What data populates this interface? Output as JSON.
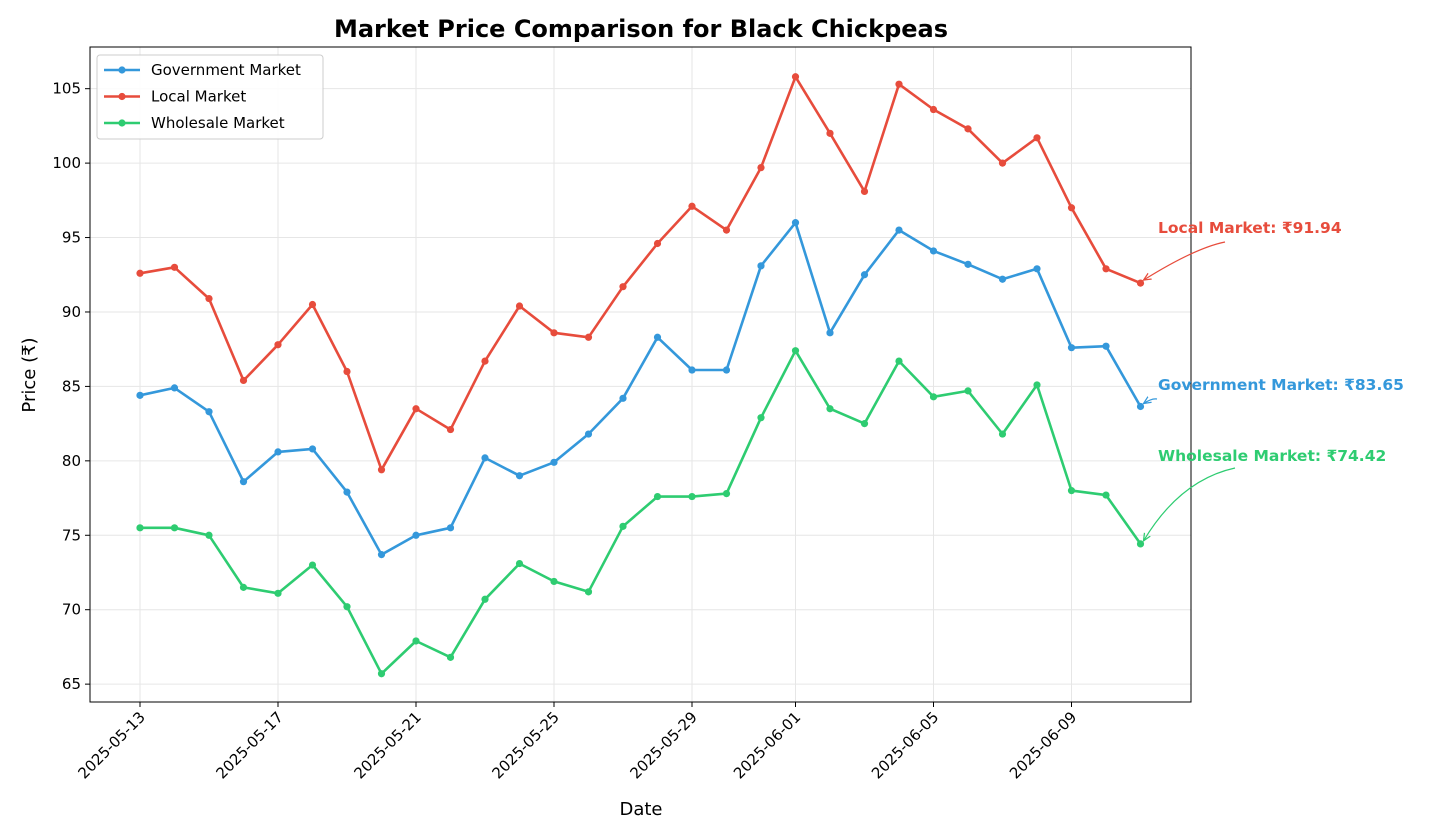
{
  "chart_data": {
    "type": "line",
    "title": "Market Price Comparison for Black Chickpeas",
    "xlabel": "Date",
    "ylabel": "Price (₹)",
    "x": [
      "2025-05-13",
      "2025-05-14",
      "2025-05-15",
      "2025-05-16",
      "2025-05-17",
      "2025-05-18",
      "2025-05-19",
      "2025-05-20",
      "2025-05-21",
      "2025-05-22",
      "2025-05-23",
      "2025-05-24",
      "2025-05-25",
      "2025-05-26",
      "2025-05-27",
      "2025-05-28",
      "2025-05-29",
      "2025-05-30",
      "2025-05-31",
      "2025-06-01",
      "2025-06-02",
      "2025-06-03",
      "2025-06-04",
      "2025-06-05",
      "2025-06-06",
      "2025-06-07",
      "2025-06-08",
      "2025-06-09",
      "2025-06-10",
      "2025-06-11"
    ],
    "xticks": [
      "2025-05-13",
      "2025-05-17",
      "2025-05-21",
      "2025-05-25",
      "2025-05-29",
      "2025-06-01",
      "2025-06-05",
      "2025-06-09"
    ],
    "yticks": [
      65,
      70,
      75,
      80,
      85,
      90,
      95,
      100,
      105
    ],
    "ylim": [
      63.8,
      107.8
    ],
    "grid": true,
    "legend_position": "top-left",
    "series": [
      {
        "name": "Government Market",
        "color": "#3498db",
        "values": [
          84.4,
          84.9,
          83.3,
          78.6,
          80.6,
          80.8,
          77.9,
          73.7,
          75.0,
          75.5,
          80.2,
          79.0,
          79.9,
          81.8,
          84.2,
          88.3,
          86.1,
          86.1,
          93.1,
          96.0,
          88.6,
          92.5,
          95.5,
          94.1,
          93.2,
          92.2,
          92.9,
          87.6,
          87.7,
          83.65
        ]
      },
      {
        "name": "Local Market",
        "color": "#e74c3c",
        "values": [
          92.6,
          93.0,
          90.9,
          85.4,
          87.8,
          90.5,
          86.0,
          79.4,
          83.5,
          82.1,
          86.7,
          90.4,
          88.6,
          88.3,
          91.7,
          94.6,
          97.1,
          95.5,
          99.7,
          105.8,
          102.0,
          98.1,
          105.3,
          103.6,
          102.3,
          100.0,
          101.7,
          97.0,
          92.9,
          91.94
        ]
      },
      {
        "name": "Wholesale Market",
        "color": "#2ecc71",
        "values": [
          75.5,
          75.5,
          75.0,
          71.5,
          71.1,
          73.0,
          70.2,
          65.7,
          67.9,
          66.8,
          70.7,
          73.1,
          71.9,
          71.2,
          75.6,
          77.6,
          77.6,
          77.8,
          82.9,
          87.4,
          83.5,
          82.5,
          86.7,
          84.3,
          84.7,
          81.8,
          85.1,
          78.0,
          77.7,
          74.42
        ]
      }
    ],
    "annotations": [
      {
        "text": "Local Market: ₹91.94",
        "color": "#e74c3c"
      },
      {
        "text": "Government Market: ₹83.65",
        "color": "#3498db"
      },
      {
        "text": "Wholesale Market: ₹74.42",
        "color": "#2ecc71"
      }
    ]
  }
}
